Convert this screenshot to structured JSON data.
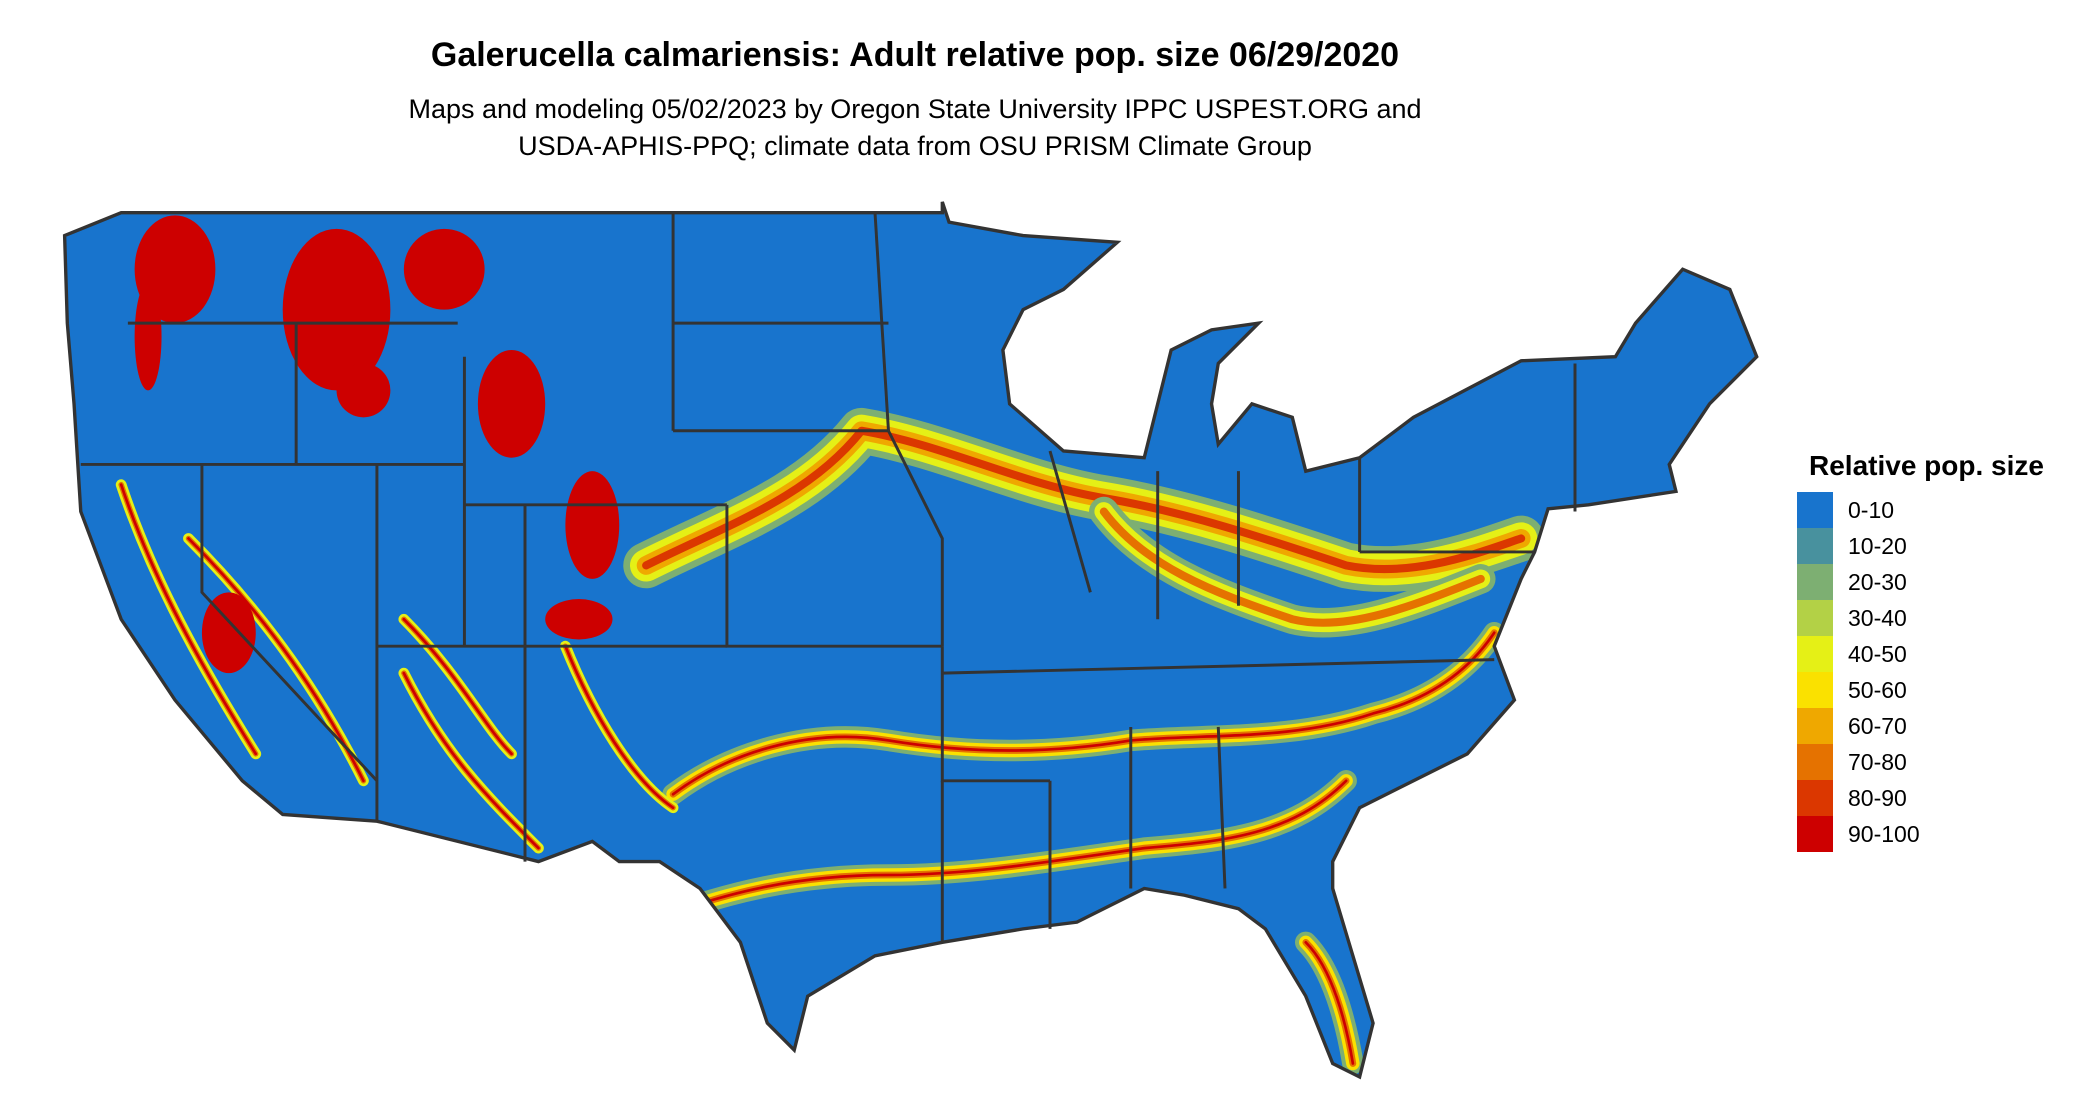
{
  "title": "Galerucella calmariensis: Adult relative pop. size 06/29/2020",
  "subtitle_lines": [
    "Maps and modeling 05/02/2023 by Oregon State University IPPC USPEST.ORG and",
    "USDA-APHIS-PPQ; climate data from OSU PRISM Climate Group"
  ],
  "chart_data": {
    "type": "heatmap",
    "title": "Galerucella calmariensis: Adult relative pop. size 06/29/2020",
    "region": "Contiguous United States",
    "legend": {
      "title": "Relative pop. size",
      "placement": "right",
      "entries": [
        {
          "label": "0-10",
          "color": "#1874CD"
        },
        {
          "label": "10-20",
          "color": "#48919E"
        },
        {
          "label": "20-30",
          "color": "#7DAF72"
        },
        {
          "label": "30-40",
          "color": "#B3D146"
        },
        {
          "label": "40-50",
          "color": "#E5F016"
        },
        {
          "label": "50-60",
          "color": "#FAE100"
        },
        {
          "label": "60-70",
          "color": "#EFA800"
        },
        {
          "label": "70-80",
          "color": "#E57200"
        },
        {
          "label": "80-90",
          "color": "#DB3700"
        },
        {
          "label": "90-100",
          "color": "#CD0000"
        }
      ]
    }
  }
}
